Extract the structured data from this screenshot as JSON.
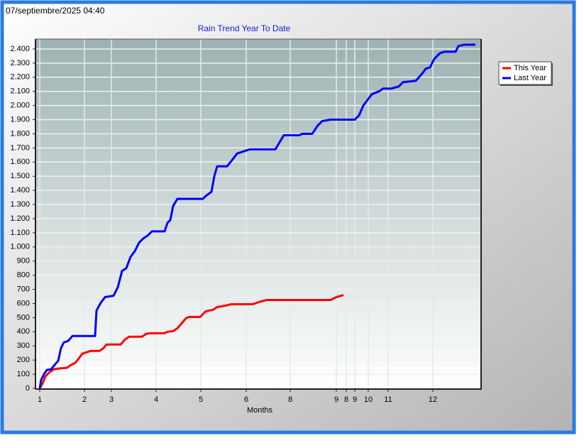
{
  "chart_data": {
    "type": "line",
    "timestamp": "07/septiembre/2025 04:40",
    "title": "Rain Trend Year To Date",
    "x_label": "Months",
    "xlim": [
      0,
      314
    ],
    "xticks": [
      {
        "value": 3,
        "label": "1"
      },
      {
        "value": 34.5,
        "label": "2"
      },
      {
        "value": 53.5,
        "label": "3"
      },
      {
        "value": 85,
        "label": "4"
      },
      {
        "value": 116.5,
        "label": "5"
      },
      {
        "value": 148.5,
        "label": "6"
      },
      {
        "value": 179.5,
        "label": "8"
      },
      {
        "value": 212,
        "label": "9"
      },
      {
        "value": 219,
        "label": "8"
      },
      {
        "value": 225,
        "label": "9"
      },
      {
        "value": 234.5,
        "label": "10"
      },
      {
        "value": 248.5,
        "label": "11"
      },
      {
        "value": 280,
        "label": "12"
      }
    ],
    "ylim": [
      0,
      2470
    ],
    "yticks": [
      0,
      100,
      200,
      300,
      400,
      500,
      600,
      700,
      800,
      900,
      {
        "value": 1000,
        "label": "1.000"
      },
      {
        "value": 1100,
        "label": "1.100"
      },
      {
        "value": 1200,
        "label": "1.200"
      },
      {
        "value": 1300,
        "label": "1.300"
      },
      {
        "value": 1400,
        "label": "1.400"
      },
      {
        "value": 1500,
        "label": "1.500"
      },
      {
        "value": 1600,
        "label": "1.600"
      },
      {
        "value": 1700,
        "label": "1.700"
      },
      {
        "value": 1800,
        "label": "1.800"
      },
      {
        "value": 1900,
        "label": "1.900"
      },
      {
        "value": 2000,
        "label": "2.000"
      },
      {
        "value": 2100,
        "label": "2.100"
      },
      {
        "value": 2200,
        "label": "2.200"
      },
      {
        "value": 2300,
        "label": "2.300"
      },
      {
        "value": 2400,
        "label": "2.400"
      }
    ],
    "grid": true,
    "legend": "right",
    "series": [
      {
        "name": "This Year",
        "color": "#ff0000",
        "x": [
          3,
          5,
          7,
          10,
          13,
          16,
          22,
          25,
          28,
          30,
          33,
          36,
          39,
          45,
          48,
          50,
          60,
          63,
          66,
          75,
          78,
          81,
          91,
          93,
          97,
          100,
          103,
          106,
          108,
          116,
          120,
          125,
          128,
          134,
          138,
          153,
          156,
          159,
          163,
          208,
          212,
          217
        ],
        "values": [
          0,
          35,
          85,
          115,
          135,
          140,
          145,
          165,
          180,
          205,
          245,
          255,
          265,
          265,
          285,
          310,
          310,
          345,
          365,
          365,
          385,
          390,
          390,
          400,
          405,
          425,
          460,
          495,
          505,
          505,
          545,
          555,
          575,
          585,
          595,
          595,
          605,
          615,
          625,
          625,
          645,
          660
        ]
      },
      {
        "name": "Last Year",
        "color": "#0000ff",
        "x": [
          3,
          4,
          6,
          8,
          11,
          13,
          16,
          18,
          20,
          23,
          26,
          42,
          43,
          46,
          49,
          55,
          58,
          61,
          64,
          67,
          70,
          73,
          76,
          79,
          82,
          91,
          93,
          95,
          97,
          100,
          118,
          120,
          124,
          126,
          128,
          135,
          139,
          142,
          148,
          151,
          169,
          172,
          175,
          186,
          188,
          195,
          199,
          202,
          208,
          225,
          228,
          231,
          234,
          237,
          242,
          245,
          251,
          256,
          259,
          268,
          272,
          275,
          278,
          281,
          285,
          288,
          296,
          298,
          302,
          310
        ],
        "values": [
          0,
          60,
          100,
          130,
          135,
          160,
          195,
          285,
          325,
          335,
          370,
          370,
          550,
          605,
          645,
          655,
          715,
          830,
          850,
          930,
          970,
          1030,
          1060,
          1080,
          1110,
          1110,
          1170,
          1190,
          1290,
          1340,
          1340,
          1360,
          1390,
          1500,
          1570,
          1570,
          1620,
          1660,
          1680,
          1690,
          1690,
          1740,
          1790,
          1790,
          1800,
          1800,
          1860,
          1890,
          1900,
          1900,
          1930,
          2000,
          2040,
          2080,
          2100,
          2120,
          2120,
          2135,
          2165,
          2175,
          2220,
          2260,
          2270,
          2330,
          2370,
          2380,
          2380,
          2420,
          2430,
          2430
        ]
      }
    ]
  }
}
